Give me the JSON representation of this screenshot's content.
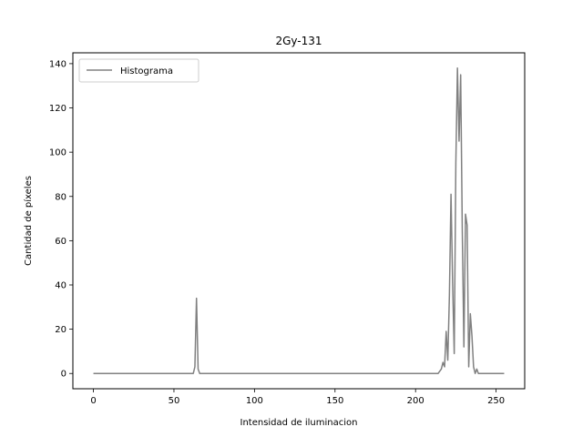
{
  "chart_data": {
    "type": "line",
    "title": "2Gy-131",
    "xlabel": "Intensidad de iluminacion",
    "ylabel": "Cantidad de píxeles",
    "xlim": [
      -12.75,
      267.75
    ],
    "ylim": [
      -6.9,
      144.9
    ],
    "xticks": [
      0,
      50,
      100,
      150,
      200,
      250
    ],
    "yticks": [
      0,
      20,
      40,
      60,
      80,
      100,
      120,
      140
    ],
    "grid": false,
    "legend": "upper-left",
    "series": [
      {
        "name": "Histograma",
        "color": "#808080",
        "x": [
          0,
          60,
          62,
          63,
          64,
          65,
          66,
          214,
          216,
          217,
          218,
          219,
          220,
          221,
          222,
          223,
          224,
          225,
          226,
          227,
          228,
          229,
          230,
          231,
          232,
          233,
          234,
          235,
          236,
          237,
          238,
          239,
          240,
          255
        ],
        "y": [
          0,
          0,
          0,
          3,
          34,
          2,
          0,
          0,
          2,
          5,
          3,
          19,
          6,
          35,
          81,
          41,
          9,
          95,
          138,
          105,
          135,
          65,
          12,
          72,
          67,
          3,
          27,
          17,
          3,
          0,
          2,
          0,
          0,
          0
        ]
      }
    ]
  }
}
